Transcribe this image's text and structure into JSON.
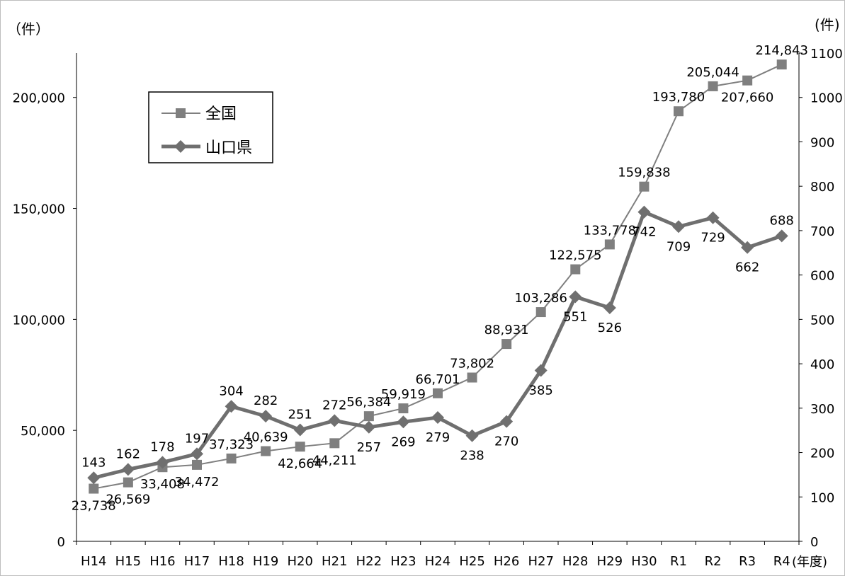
{
  "chart_data": {
    "type": "line",
    "left_unit": "（件）",
    "right_unit": "(件)",
    "x_unit": "(年度)",
    "categories": [
      "H14",
      "H15",
      "H16",
      "H17",
      "H18",
      "H19",
      "H20",
      "H21",
      "H22",
      "H23",
      "H24",
      "H25",
      "H26",
      "H27",
      "H28",
      "H29",
      "H30",
      "R1",
      "R2",
      "R3",
      "R4"
    ],
    "left_axis": {
      "range": [
        0,
        220000
      ],
      "ticks": [
        0,
        50000,
        100000,
        150000,
        200000
      ],
      "tick_labels": [
        "0",
        "50,000",
        "100,000",
        "150,000",
        "200,000"
      ]
    },
    "right_axis": {
      "range": [
        0,
        1100
      ],
      "ticks": [
        0,
        100,
        200,
        300,
        400,
        500,
        600,
        700,
        800,
        900,
        1000,
        1100
      ],
      "tick_labels": [
        "0",
        "100",
        "200",
        "300",
        "400",
        "500",
        "600",
        "700",
        "800",
        "900",
        "1000",
        "1100"
      ]
    },
    "legend": {
      "placement": "top-left",
      "entries": [
        "全国",
        "山口県"
      ]
    },
    "series": [
      {
        "name": "全国",
        "axis": "left",
        "marker": "square",
        "color": "#7f7f7f",
        "values": [
          23738,
          26569,
          33408,
          34472,
          37323,
          40639,
          42664,
          44211,
          56384,
          59919,
          66701,
          73802,
          88931,
          103286,
          122575,
          133778,
          159838,
          193780,
          205044,
          207660,
          214843
        ],
        "labels": [
          "23,738",
          "26,569",
          "33,408",
          "34,472",
          "37,323",
          "40,639",
          "42,664",
          "44,211",
          "56,384",
          "59,919",
          "66,701",
          "73,802",
          "88,931",
          "103,286",
          "122,575",
          "133,778",
          "159,838",
          "193,780",
          "205,044",
          "207,660",
          "214,843"
        ]
      },
      {
        "name": "山口県",
        "axis": "right",
        "marker": "diamond",
        "color": "#6f6f6f",
        "values": [
          143,
          162,
          178,
          197,
          304,
          282,
          251,
          272,
          257,
          269,
          279,
          238,
          270,
          385,
          551,
          526,
          742,
          709,
          729,
          662,
          688
        ],
        "labels": [
          "143",
          "162",
          "178",
          "197",
          "304",
          "282",
          "251",
          "272",
          "257",
          "269",
          "279",
          "238",
          "270",
          "385",
          "551",
          "526",
          "742",
          "709",
          "729",
          "662",
          "688"
        ]
      }
    ]
  }
}
